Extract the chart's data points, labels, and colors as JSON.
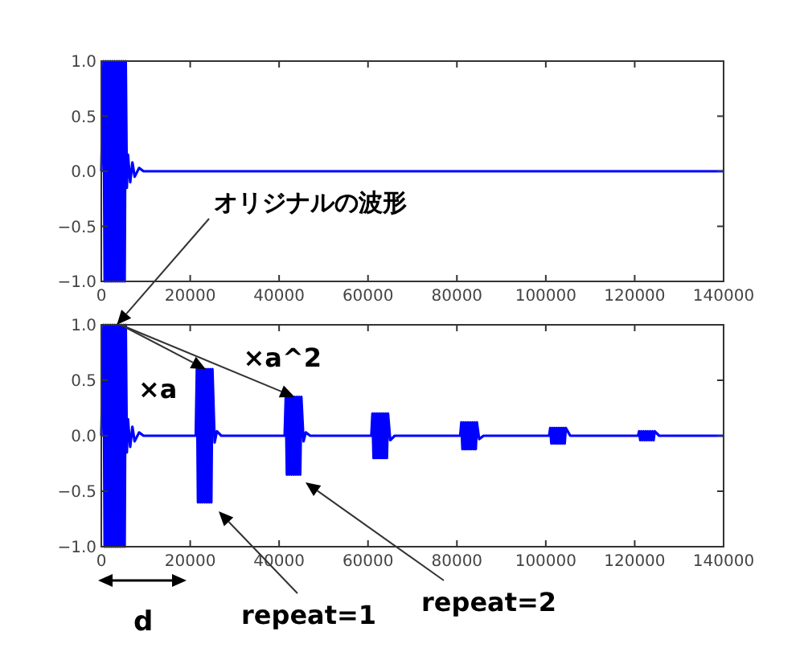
{
  "chart_data": [
    {
      "type": "line",
      "xlim": [
        0,
        140000
      ],
      "ylim": [
        -1,
        1
      ],
      "xticks": [
        0,
        20000,
        40000,
        60000,
        80000,
        100000,
        120000,
        140000
      ],
      "yticks": [
        {
          "value": -1,
          "label": "−1.0"
        },
        {
          "value": -0.5,
          "label": "−0.5"
        },
        {
          "value": 0,
          "label": "0.0"
        },
        {
          "value": 0.5,
          "label": "0.5"
        },
        {
          "value": 1,
          "label": "1.0"
        }
      ],
      "grid": false,
      "series": [
        {
          "color": "#0000ff",
          "x": [
            0,
            500,
            750,
            1000,
            1250,
            1500,
            1750,
            2000,
            2250,
            2500,
            2750,
            3000,
            3250,
            3500,
            3750,
            4000,
            4250,
            4500,
            4750,
            5000,
            5250,
            5500,
            5750,
            6000,
            6500,
            7000,
            7500,
            8500,
            9500,
            140000
          ],
          "values": [
            0,
            1,
            -1,
            1,
            -1,
            1,
            -1,
            1,
            -1,
            1,
            -1,
            1,
            -1,
            1,
            -1,
            1,
            -1,
            1,
            -1,
            1,
            -1,
            1,
            -0.15,
            0.15,
            -0.1,
            0.08,
            -0.05,
            0.03,
            0,
            0
          ]
        }
      ]
    },
    {
      "type": "line",
      "xlim": [
        0,
        140000
      ],
      "ylim": [
        -1,
        1
      ],
      "xticks": [
        0,
        20000,
        40000,
        60000,
        80000,
        100000,
        120000,
        140000
      ],
      "yticks": [
        {
          "value": -1,
          "label": "−1.0"
        },
        {
          "value": -0.5,
          "label": "−0.5"
        },
        {
          "value": 0,
          "label": "0.0"
        },
        {
          "value": 0.5,
          "label": "0.5"
        },
        {
          "value": 1,
          "label": "1.0"
        }
      ],
      "grid": false,
      "annotations": [
        {
          "text": "オリジナルの波形",
          "x": 3500,
          "y": 1
        },
        {
          "text": "×a",
          "x": 23500,
          "y": 0.6
        },
        {
          "text": "×a^2",
          "x": 43500,
          "y": 0.35
        },
        "repeat=1",
        "repeat=2",
        "d"
      ],
      "series": [
        {
          "color": "#0000ff",
          "x": [
            0,
            500,
            750,
            1000,
            1250,
            1500,
            1750,
            2000,
            2250,
            2500,
            2750,
            3000,
            3250,
            3500,
            3750,
            4000,
            4250,
            4500,
            4750,
            5000,
            5250,
            5500,
            5750,
            6000,
            6500,
            7000,
            7500,
            8500,
            9500,
            21250,
            21500,
            21750,
            22000,
            22250,
            22500,
            22750,
            23000,
            23250,
            23500,
            23750,
            24000,
            24250,
            24500,
            24750,
            25000,
            25500,
            26000,
            27000,
            41250,
            41500,
            41750,
            42000,
            42250,
            42500,
            42750,
            43000,
            43250,
            43500,
            43750,
            44000,
            44250,
            44500,
            44750,
            45000,
            45500,
            46000,
            47000,
            60750,
            61000,
            61250,
            61500,
            61750,
            62000,
            62250,
            62500,
            62750,
            63000,
            63250,
            63500,
            63750,
            64000,
            64250,
            64500,
            65000,
            66000,
            80750,
            81000,
            81250,
            81500,
            81750,
            82000,
            82250,
            82500,
            82750,
            83000,
            83250,
            83500,
            83750,
            84000,
            84250,
            84500,
            85000,
            86000,
            100750,
            101000,
            101250,
            101500,
            101750,
            102000,
            102250,
            102500,
            102750,
            103000,
            103250,
            103500,
            103750,
            104000,
            104250,
            104500,
            105500,
            120750,
            121000,
            121250,
            121500,
            121750,
            122000,
            122250,
            122500,
            122750,
            123000,
            123250,
            123500,
            123750,
            124000,
            124250,
            124500,
            125500,
            140000
          ],
          "values": [
            0,
            1,
            -1,
            1,
            -1,
            1,
            -1,
            1,
            -1,
            1,
            -1,
            1,
            -1,
            1,
            -1,
            1,
            -1,
            1,
            -1,
            1,
            -1,
            1,
            -0.15,
            0.15,
            -0.1,
            0.08,
            -0.05,
            0.03,
            0,
            0,
            0.6,
            -0.6,
            0.6,
            -0.6,
            0.6,
            -0.6,
            0.6,
            -0.6,
            0.6,
            -0.6,
            0.6,
            -0.6,
            0.6,
            -0.6,
            0.6,
            -0.06,
            0.04,
            0,
            0,
            0.35,
            -0.35,
            0.35,
            -0.35,
            0.35,
            -0.35,
            0.35,
            -0.35,
            0.35,
            -0.35,
            0.35,
            -0.35,
            0.35,
            -0.35,
            0.35,
            -0.05,
            0.03,
            0,
            0,
            0.2,
            -0.2,
            0.2,
            -0.2,
            0.2,
            -0.2,
            0.2,
            -0.2,
            0.2,
            -0.2,
            0.2,
            -0.2,
            0.2,
            -0.2,
            0.2,
            -0.04,
            0,
            0,
            0.12,
            -0.12,
            0.12,
            -0.12,
            0.12,
            -0.12,
            0.12,
            -0.12,
            0.12,
            -0.12,
            0.12,
            -0.12,
            0.12,
            -0.12,
            0.12,
            -0.03,
            0,
            0,
            0.07,
            -0.07,
            0.07,
            -0.07,
            0.07,
            -0.07,
            0.07,
            -0.07,
            0.07,
            -0.07,
            0.07,
            -0.07,
            0.07,
            -0.07,
            0.07,
            0,
            0,
            0.04,
            -0.04,
            0.04,
            -0.04,
            0.04,
            -0.04,
            0.04,
            -0.04,
            0.04,
            -0.04,
            0.04,
            -0.04,
            0.04,
            -0.04,
            0.04,
            0,
            0
          ]
        }
      ]
    }
  ]
}
